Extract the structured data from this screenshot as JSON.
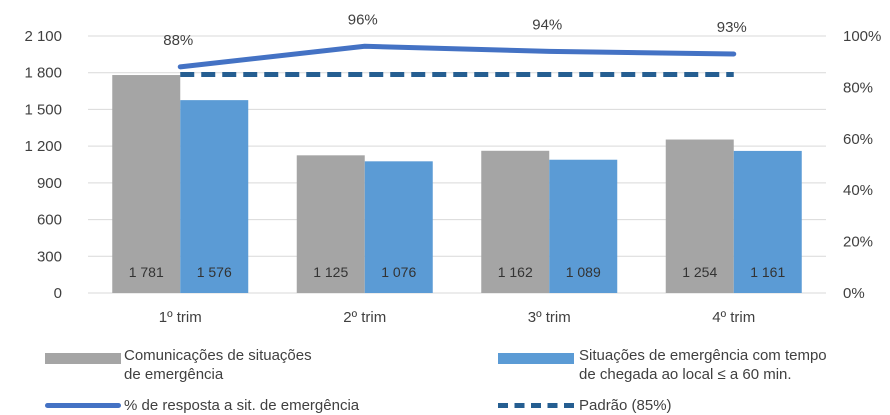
{
  "chart_data": {
    "type": "bar",
    "categories": [
      "1º trim",
      "2º trim",
      "3º trim",
      "4º trim"
    ],
    "series": [
      {
        "name": "Comunicações de situações\nde emergência",
        "type": "bar",
        "axis": "left",
        "color": "#a5a5a5",
        "values": [
          1781,
          1125,
          1162,
          1254
        ],
        "labels": [
          "1 781",
          "1 125",
          "1 162",
          "1 254"
        ]
      },
      {
        "name": "Situações de emergência com tempo\nde chegada ao local ≤ a 60 min.",
        "type": "bar",
        "axis": "right-hidden",
        "color": "#5b9bd5",
        "values": [
          1576,
          1076,
          1089,
          1161
        ],
        "labels": [
          "1 576",
          "1 076",
          "1 089",
          "1 161"
        ]
      },
      {
        "name": "% de resposta a sit. de emergência",
        "type": "line",
        "axis": "right",
        "color": "#4472c4",
        "values": [
          88,
          96,
          94,
          93
        ],
        "labels": [
          "88%",
          "96%",
          "94%",
          "93%"
        ]
      },
      {
        "name": "Padrão (85%)",
        "type": "line-dashed",
        "axis": "right",
        "color": "#255e91",
        "values": [
          85,
          85,
          85,
          85
        ]
      }
    ],
    "y_left": {
      "range": [
        0,
        2100
      ],
      "ticks": [
        0,
        300,
        600,
        900,
        1200,
        1500,
        1800,
        2100
      ],
      "tick_labels": [
        "0",
        "300",
        "600",
        "900",
        "1 200",
        "1 500",
        "1 800",
        "2 100"
      ]
    },
    "y_right": {
      "range": [
        0,
        100
      ],
      "ticks": [
        0,
        20,
        40,
        60,
        80,
        100
      ],
      "tick_labels": [
        "0%",
        "20%",
        "40%",
        "60%",
        "80%",
        "100%"
      ]
    },
    "grid": true,
    "legend_position": "bottom"
  }
}
